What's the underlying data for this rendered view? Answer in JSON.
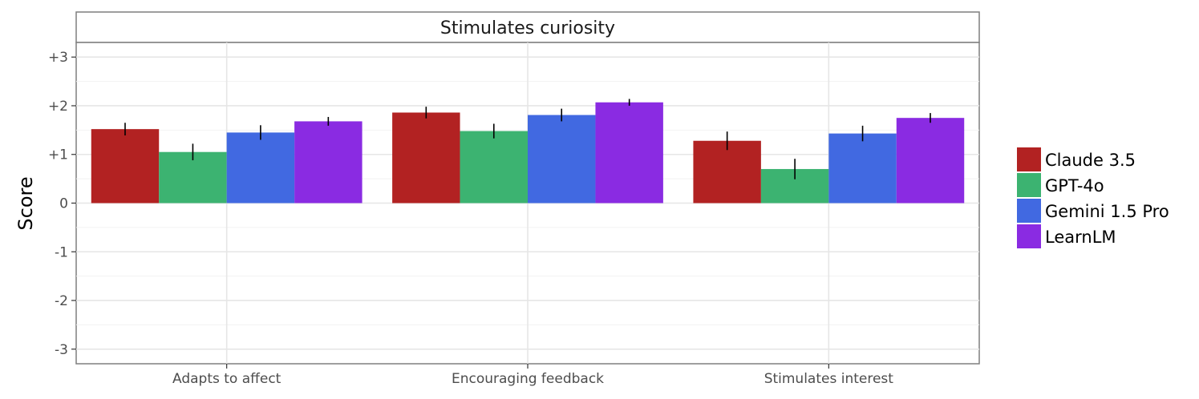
{
  "chart_data": {
    "type": "bar",
    "title": "Stimulates curiosity",
    "ylabel": "Score",
    "xlabel": "",
    "ylim": [
      -3.3,
      3.3
    ],
    "y_tick_labels": [
      "-3",
      "-2",
      "-1",
      "0",
      "+1",
      "+2",
      "+3"
    ],
    "y_tick_values": [
      -3,
      -2,
      -1,
      0,
      1,
      2,
      3
    ],
    "categories": [
      "Adapts to affect",
      "Encouraging feedback",
      "Stimulates interest"
    ],
    "series": [
      {
        "name": "Claude 3.5",
        "color": "#b22222",
        "values": [
          1.52,
          1.86,
          1.28
        ],
        "errors": [
          0.13,
          0.12,
          0.19
        ]
      },
      {
        "name": "GPT-4o",
        "color": "#3cb371",
        "values": [
          1.05,
          1.48,
          0.7
        ],
        "errors": [
          0.17,
          0.15,
          0.21
        ]
      },
      {
        "name": "Gemini 1.5 Pro",
        "color": "#4169e1",
        "values": [
          1.45,
          1.81,
          1.43
        ],
        "errors": [
          0.15,
          0.13,
          0.16
        ]
      },
      {
        "name": "LearnLM",
        "color": "#8a2be2",
        "values": [
          1.68,
          2.07,
          1.75
        ],
        "errors": [
          0.09,
          0.07,
          0.1
        ]
      }
    ],
    "grid": true,
    "legend_position": "right"
  }
}
